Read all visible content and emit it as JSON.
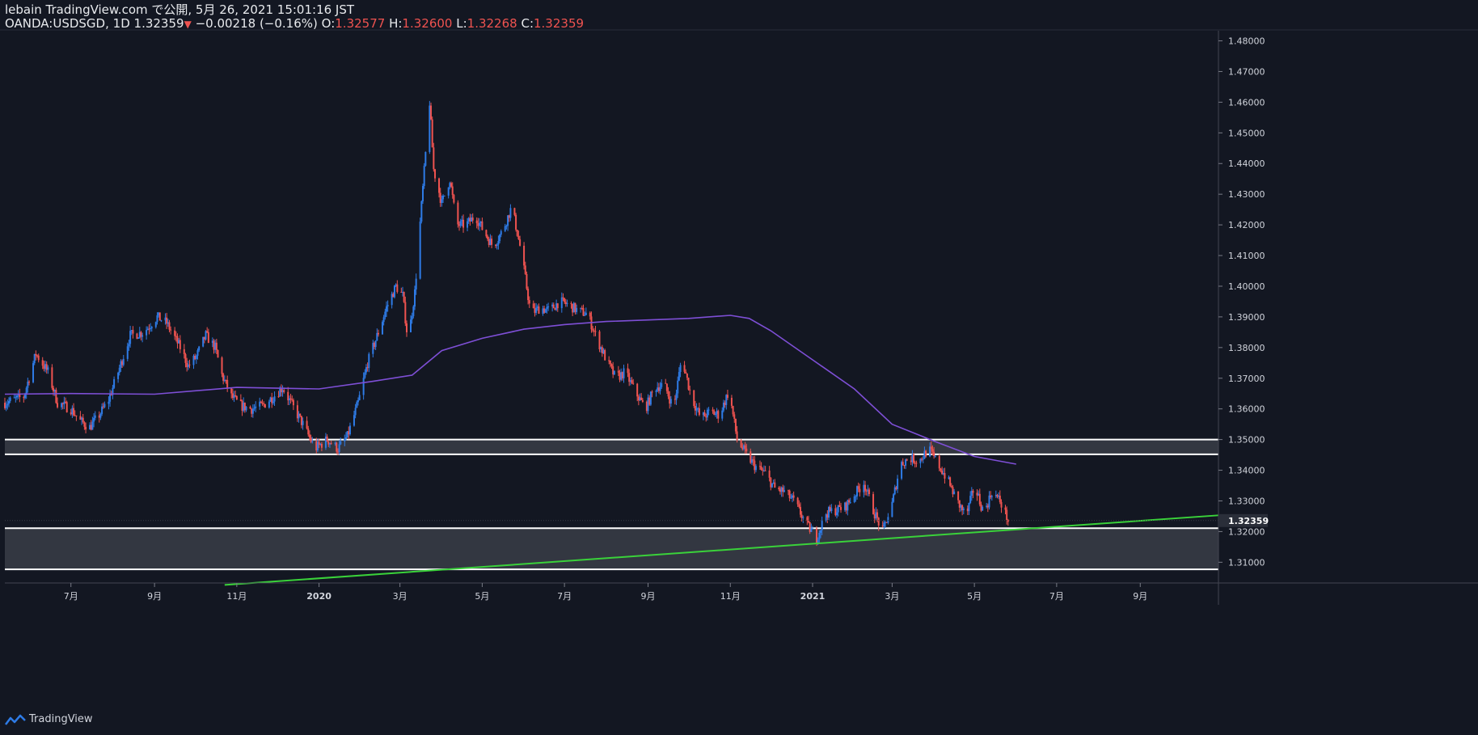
{
  "header": {
    "line1": "lebain TradingView.com で公開, 5月 26, 2021 15:01:16 JST",
    "symbol": "OANDA:USDSGD, 1D",
    "last": "1.32359",
    "change_arrow": "▼",
    "change": "−0.00218 (−0.16%)",
    "o_label": "O:",
    "o_value": "1.32577",
    "h_label": "H:",
    "h_value": "1.32600",
    "l_label": "L:",
    "l_value": "1.32268",
    "c_label": "C:",
    "c_value": "1.32359"
  },
  "footer": {
    "brand": "TradingView"
  },
  "colors": {
    "background": "#131722",
    "up": "#2e7be6",
    "down": "#ef5350",
    "ma": "#7e4fd6",
    "trendline": "#3ad23a",
    "zone": "#3a3d46",
    "zone_border": "#ffffff",
    "axis_text": "#d1d4dc"
  },
  "chart_data": {
    "type": "candlestick",
    "ylim": [
      1.3035,
      1.4833
    ],
    "y_ticks": [
      "1.48000",
      "1.47000",
      "1.46000",
      "1.45000",
      "1.44000",
      "1.43000",
      "1.42000",
      "1.41000",
      "1.40000",
      "1.39000",
      "1.38000",
      "1.37000",
      "1.36000",
      "1.35000",
      "1.34000",
      "1.33000",
      "1.32000",
      "1.31000"
    ],
    "x_ticks": [
      {
        "label": "7月",
        "date": "2019-07-01"
      },
      {
        "label": "9月",
        "date": "2019-09-01"
      },
      {
        "label": "11月",
        "date": "2019-11-01"
      },
      {
        "label": "2020",
        "date": "2020-01-01"
      },
      {
        "label": "3月",
        "date": "2020-03-01"
      },
      {
        "label": "5月",
        "date": "2020-05-01"
      },
      {
        "label": "7月",
        "date": "2020-07-01"
      },
      {
        "label": "9月",
        "date": "2020-09-01"
      },
      {
        "label": "11月",
        "date": "2020-11-01"
      },
      {
        "label": "2021",
        "date": "2021-01-01"
      },
      {
        "label": "3月",
        "date": "2021-03-01"
      },
      {
        "label": "5月",
        "date": "2021-05-01"
      },
      {
        "label": "7月",
        "date": "2021-07-01"
      },
      {
        "label": "9月",
        "date": "2021-09-01"
      }
    ],
    "x_range": [
      "2019-05-13",
      "2021-10-29"
    ],
    "last_price_label": "1.32359",
    "close_path": [
      [
        "2019-05-13",
        1.362
      ],
      [
        "2019-05-27",
        1.364
      ],
      [
        "2019-06-05",
        1.378
      ],
      [
        "2019-06-14",
        1.372
      ],
      [
        "2019-06-21",
        1.362
      ],
      [
        "2019-07-01",
        1.36
      ],
      [
        "2019-07-08",
        1.356
      ],
      [
        "2019-07-15",
        1.354
      ],
      [
        "2019-07-22",
        1.358
      ],
      [
        "2019-07-29",
        1.363
      ],
      [
        "2019-08-05",
        1.372
      ],
      [
        "2019-08-14",
        1.384
      ],
      [
        "2019-08-24",
        1.385
      ],
      [
        "2019-09-03",
        1.39
      ],
      [
        "2019-09-10",
        1.388
      ],
      [
        "2019-09-20",
        1.38
      ],
      [
        "2019-09-26",
        1.374
      ],
      [
        "2019-10-02",
        1.377
      ],
      [
        "2019-10-09",
        1.384
      ],
      [
        "2019-10-16",
        1.38
      ],
      [
        "2019-10-21",
        1.371
      ],
      [
        "2019-10-28",
        1.364
      ],
      [
        "2019-11-04",
        1.361
      ],
      [
        "2019-11-12",
        1.36
      ],
      [
        "2019-11-20",
        1.361
      ],
      [
        "2019-11-28",
        1.364
      ],
      [
        "2019-12-05",
        1.367
      ],
      [
        "2019-12-11",
        1.362
      ],
      [
        "2019-12-20",
        1.355
      ],
      [
        "2019-12-29",
        1.347
      ],
      [
        "2020-01-07",
        1.35
      ],
      [
        "2020-01-15",
        1.347
      ],
      [
        "2020-01-22",
        1.351
      ],
      [
        "2020-01-30",
        1.362
      ],
      [
        "2020-02-06",
        1.375
      ],
      [
        "2020-02-14",
        1.385
      ],
      [
        "2020-02-20",
        1.393
      ],
      [
        "2020-02-27",
        1.4
      ],
      [
        "2020-03-03",
        1.397
      ],
      [
        "2020-03-07",
        1.382
      ],
      [
        "2020-03-12",
        1.398
      ],
      [
        "2020-03-18",
        1.432
      ],
      [
        "2020-03-23",
        1.46
      ],
      [
        "2020-03-26",
        1.438
      ],
      [
        "2020-04-01",
        1.427
      ],
      [
        "2020-04-07",
        1.435
      ],
      [
        "2020-04-12",
        1.42
      ],
      [
        "2020-04-19",
        1.42
      ],
      [
        "2020-04-26",
        1.423
      ],
      [
        "2020-05-02",
        1.418
      ],
      [
        "2020-05-09",
        1.413
      ],
      [
        "2020-05-16",
        1.418
      ],
      [
        "2020-05-23",
        1.426
      ],
      [
        "2020-05-30",
        1.411
      ],
      [
        "2020-06-06",
        1.391
      ],
      [
        "2020-06-13",
        1.393
      ],
      [
        "2020-06-20",
        1.392
      ],
      [
        "2020-06-27",
        1.395
      ],
      [
        "2020-07-04",
        1.394
      ],
      [
        "2020-07-11",
        1.392
      ],
      [
        "2020-07-18",
        1.391
      ],
      [
        "2020-07-25",
        1.383
      ],
      [
        "2020-08-01",
        1.376
      ],
      [
        "2020-08-08",
        1.37
      ],
      [
        "2020-08-15",
        1.372
      ],
      [
        "2020-08-22",
        1.366
      ],
      [
        "2020-08-30",
        1.36
      ],
      [
        "2020-09-06",
        1.367
      ],
      [
        "2020-09-13",
        1.368
      ],
      [
        "2020-09-20",
        1.36
      ],
      [
        "2020-09-26",
        1.377
      ],
      [
        "2020-10-03",
        1.364
      ],
      [
        "2020-10-10",
        1.357
      ],
      [
        "2020-10-17",
        1.359
      ],
      [
        "2020-10-24",
        1.358
      ],
      [
        "2020-10-31",
        1.366
      ],
      [
        "2020-11-06",
        1.35
      ],
      [
        "2020-11-13",
        1.345
      ],
      [
        "2020-11-20",
        1.341
      ],
      [
        "2020-11-27",
        1.339
      ],
      [
        "2020-12-04",
        1.334
      ],
      [
        "2020-12-11",
        1.333
      ],
      [
        "2020-12-18",
        1.33
      ],
      [
        "2020-12-28",
        1.322
      ],
      [
        "2021-01-04",
        1.318
      ],
      [
        "2021-01-11",
        1.326
      ],
      [
        "2021-01-18",
        1.327
      ],
      [
        "2021-01-25",
        1.328
      ],
      [
        "2021-02-01",
        1.332
      ],
      [
        "2021-02-08",
        1.336
      ],
      [
        "2021-02-15",
        1.327
      ],
      [
        "2021-02-22",
        1.32
      ],
      [
        "2021-03-01",
        1.329
      ],
      [
        "2021-03-07",
        1.342
      ],
      [
        "2021-03-14",
        1.344
      ],
      [
        "2021-03-21",
        1.343
      ],
      [
        "2021-03-28",
        1.347
      ],
      [
        "2021-04-04",
        1.342
      ],
      [
        "2021-04-11",
        1.337
      ],
      [
        "2021-04-18",
        1.33
      ],
      [
        "2021-04-25",
        1.325
      ],
      [
        "2021-05-01",
        1.335
      ],
      [
        "2021-05-08",
        1.326
      ],
      [
        "2021-05-14",
        1.333
      ],
      [
        "2021-05-20",
        1.33
      ],
      [
        "2021-05-26",
        1.3236
      ]
    ],
    "moving_average": [
      [
        "2019-05-13",
        1.3648
      ],
      [
        "2019-07-01",
        1.365
      ],
      [
        "2019-09-01",
        1.3648
      ],
      [
        "2019-11-01",
        1.367
      ],
      [
        "2020-01-01",
        1.3665
      ],
      [
        "2020-02-10",
        1.369
      ],
      [
        "2020-03-10",
        1.371
      ],
      [
        "2020-04-01",
        1.379
      ],
      [
        "2020-05-01",
        1.383
      ],
      [
        "2020-06-01",
        1.386
      ],
      [
        "2020-07-01",
        1.3875
      ],
      [
        "2020-08-01",
        1.3885
      ],
      [
        "2020-09-01",
        1.389
      ],
      [
        "2020-10-01",
        1.3895
      ],
      [
        "2020-11-01",
        1.3905
      ],
      [
        "2020-11-15",
        1.3895
      ],
      [
        "2020-12-01",
        1.3855
      ],
      [
        "2021-01-01",
        1.376
      ],
      [
        "2021-02-01",
        1.3665
      ],
      [
        "2021-03-01",
        1.355
      ],
      [
        "2021-04-01",
        1.3495
      ],
      [
        "2021-05-01",
        1.3445
      ],
      [
        "2021-06-01",
        1.342
      ]
    ],
    "zones": [
      {
        "top": 1.35,
        "bottom": 1.3452
      },
      {
        "top": 1.3211,
        "bottom": 1.3077
      }
    ],
    "trendline": {
      "start": [
        "2019-10-23",
        1.3026
      ],
      "end": [
        "2021-10-29",
        1.3253
      ]
    }
  }
}
